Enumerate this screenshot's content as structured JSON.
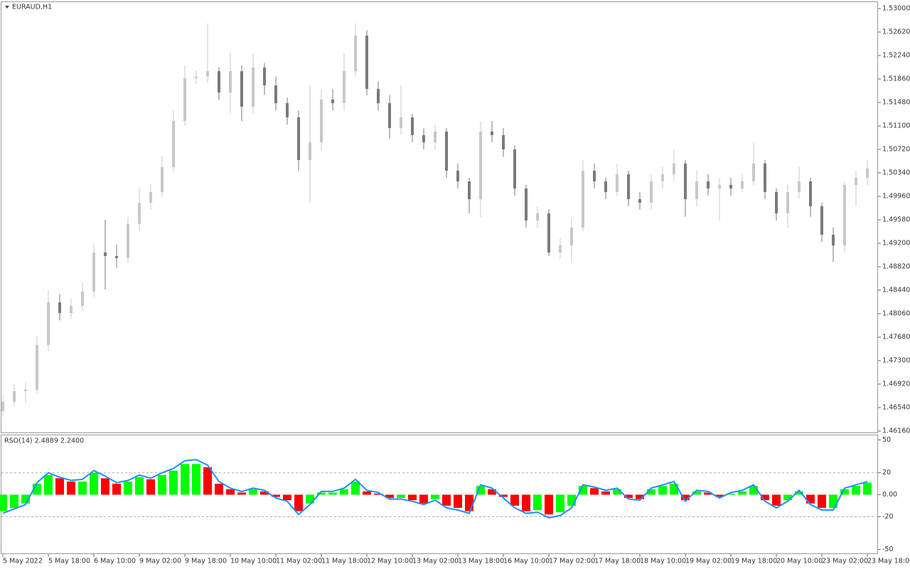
{
  "chart_data": [
    {
      "type": "candlestick",
      "title": "EURAUD,H1",
      "categories": [
        "5 May 2022",
        null,
        null,
        null,
        "5 May 18:00",
        null,
        null,
        null,
        "6 May 10:00",
        null,
        null,
        null,
        "9 May 02:00",
        null,
        null,
        null,
        "9 May 18:00",
        null,
        null,
        null,
        "10 May 10:00",
        null,
        null,
        null,
        "11 May 02:00",
        null,
        null,
        null,
        "11 May 18:00",
        null,
        null,
        null,
        "12 May 10:00",
        null,
        null,
        null,
        "13 May 02:00",
        null,
        null,
        null,
        "13 May 18:00",
        null,
        null,
        null,
        "16 May 10:00",
        null,
        null,
        null,
        "17 May 02:00",
        null,
        null,
        null,
        "17 May 18:00",
        null,
        null,
        null,
        "18 May 10:00",
        null,
        null,
        null,
        "19 May 02:00",
        null,
        null,
        null,
        "19 May 18:00",
        null,
        null,
        null,
        "20 May 10:00",
        null,
        null,
        null,
        "23 May 02:00",
        null,
        null,
        null,
        "23 May 18:00"
      ],
      "open": [
        1.46482,
        1.46632,
        1.46805,
        1.46828,
        1.47553,
        1.48244,
        1.48071,
        1.48187,
        1.48417,
        1.4905,
        1.48993,
        1.4896,
        1.49511,
        1.49856,
        1.50029,
        1.50432,
        1.5118,
        1.51871,
        1.519,
        1.51986,
        1.51641,
        1.51986,
        1.51411,
        1.52044,
        1.51756,
        1.51468,
        1.51238,
        1.50547,
        1.50835,
        1.51526,
        1.51468,
        1.51986,
        1.52562,
        1.51699,
        1.51468,
        1.51065,
        1.51238,
        1.5095,
        1.50835,
        1.51008,
        1.50374,
        1.50202,
        1.49914,
        1.51008,
        1.5095,
        1.5072,
        1.50087,
        1.49568,
        1.49683,
        1.4905,
        1.49165,
        1.49453,
        1.50374,
        1.50202,
        1.50029,
        1.50317,
        1.49914,
        1.49856,
        1.50202,
        1.50317,
        1.5049,
        1.49914,
        1.50202,
        1.50087,
        1.50144,
        1.50087,
        1.50202,
        1.5049,
        1.50029,
        1.49683,
        1.50029,
        1.50202,
        1.49799,
        1.49338,
        1.49165,
        1.50144,
        1.50259
      ],
      "high": [
        1.4675,
        1.4692,
        1.4696,
        1.477,
        1.4844,
        1.4838,
        1.483,
        1.4856,
        1.492,
        1.4958,
        1.4918,
        1.4962,
        1.5009,
        1.5016,
        1.5062,
        1.5135,
        1.5207,
        1.52,
        1.52758,
        1.5205,
        1.52274,
        1.5208,
        1.52274,
        1.5212,
        1.519,
        1.5156,
        1.5135,
        1.51756,
        1.517,
        1.517,
        1.52274,
        1.52758,
        1.5265,
        1.5182,
        1.516,
        1.51756,
        1.513,
        1.51065,
        1.5112,
        1.51065,
        1.5049,
        1.5026,
        1.5118,
        1.5118,
        1.51065,
        1.5078,
        1.50144,
        1.498,
        1.4975,
        1.4928,
        1.496,
        1.5055,
        1.5049,
        1.5026,
        1.5049,
        1.50374,
        1.50029,
        1.50317,
        1.50432,
        1.5072,
        1.50547,
        1.50374,
        1.50317,
        1.5026,
        1.5026,
        1.50317,
        1.50835,
        1.50547,
        1.50087,
        1.50144,
        1.50432,
        1.5026,
        1.4986,
        1.49453,
        1.50202,
        1.50374,
        1.50547
      ],
      "low": [
        1.464,
        1.4655,
        1.4662,
        1.4676,
        1.4745,
        1.4795,
        1.4798,
        1.481,
        1.4833,
        1.4845,
        1.488,
        1.4888,
        1.494,
        1.4975,
        1.4995,
        1.5035,
        1.511,
        1.5178,
        1.518,
        1.5152,
        1.513,
        1.5118,
        1.513,
        1.516,
        1.5135,
        1.5112,
        1.50374,
        1.49856,
        1.507,
        1.5135,
        1.5135,
        1.519,
        1.516,
        1.5135,
        1.50893,
        1.5095,
        1.50835,
        1.5072,
        1.5072,
        1.50259,
        1.50087,
        1.49683,
        1.49626,
        1.50835,
        1.506,
        1.4997,
        1.4945,
        1.4945,
        1.48993,
        1.4895,
        1.489,
        1.494,
        1.50087,
        1.49914,
        1.4997,
        1.49799,
        1.4974,
        1.4974,
        1.50087,
        1.50202,
        1.49626,
        1.49799,
        1.4997,
        1.49568,
        1.4997,
        1.50029,
        1.50144,
        1.49914,
        1.49568,
        1.49453,
        1.49914,
        1.49626,
        1.4922,
        1.489,
        1.4905,
        1.49799,
        1.50144
      ],
      "close": [
        1.46632,
        1.46805,
        1.46828,
        1.47553,
        1.48244,
        1.48071,
        1.48187,
        1.48417,
        1.4905,
        1.48993,
        1.4896,
        1.49511,
        1.49856,
        1.50029,
        1.50432,
        1.5118,
        1.51871,
        1.519,
        1.51986,
        1.51641,
        1.51986,
        1.51411,
        1.52044,
        1.51756,
        1.51468,
        1.51238,
        1.50547,
        1.50835,
        1.51526,
        1.51468,
        1.51986,
        1.52562,
        1.51699,
        1.51468,
        1.51065,
        1.51238,
        1.5095,
        1.50835,
        1.51008,
        1.50374,
        1.50202,
        1.49914,
        1.51008,
        1.5095,
        1.5072,
        1.50087,
        1.49568,
        1.49683,
        1.4905,
        1.49165,
        1.49453,
        1.50374,
        1.50202,
        1.50029,
        1.50317,
        1.49914,
        1.49856,
        1.50202,
        1.50317,
        1.5049,
        1.49914,
        1.50202,
        1.50087,
        1.50144,
        1.50087,
        1.50202,
        1.5049,
        1.50029,
        1.49683,
        1.50029,
        1.50202,
        1.49799,
        1.49338,
        1.49165,
        1.50144,
        1.50259,
        1.50409
      ],
      "up_color": "#c8c8c8",
      "down_color": "#7a7a7a",
      "ylim": [
        1.46137,
        1.53104
      ],
      "yticks": [
        {
          "value": 1.53,
          "label": "1.53000"
        },
        {
          "value": 1.5262,
          "label": "1.52620"
        },
        {
          "value": 1.5224,
          "label": "1.52240"
        },
        {
          "value": 1.5186,
          "label": "1.51860"
        },
        {
          "value": 1.5148,
          "label": "1.51480"
        },
        {
          "value": 1.511,
          "label": "1.51100"
        },
        {
          "value": 1.5072,
          "label": "1.50720"
        },
        {
          "value": 1.5034,
          "label": "1.50340"
        },
        {
          "value": 1.4996,
          "label": "1.49960"
        },
        {
          "value": 1.4958,
          "label": "1.49580"
        },
        {
          "value": 1.492,
          "label": "1.49200"
        },
        {
          "value": 1.4882,
          "label": "1.48820"
        },
        {
          "value": 1.4844,
          "label": "1.48440"
        },
        {
          "value": 1.4806,
          "label": "1.48060"
        },
        {
          "value": 1.4768,
          "label": "1.47680"
        },
        {
          "value": 1.473,
          "label": "1.47300"
        },
        {
          "value": 1.4692,
          "label": "1.46920"
        },
        {
          "value": 1.4654,
          "label": "1.46540"
        },
        {
          "value": 1.4616,
          "label": "1.46160"
        }
      ]
    },
    {
      "type": "histogram-line",
      "title": "RSO(14) 2.4889 2.2400",
      "values": [
        -15,
        -12,
        -8,
        10,
        18,
        15,
        12,
        12,
        20,
        15,
        10,
        12,
        16,
        14,
        18,
        22,
        28,
        28,
        25,
        10,
        5,
        2,
        5,
        3,
        -2,
        -5,
        -15,
        -8,
        2,
        2,
        5,
        12,
        3,
        1,
        -3,
        -3,
        -5,
        -8,
        -4,
        -10,
        -12,
        -15,
        8,
        5,
        -2,
        -10,
        -15,
        -14,
        -18,
        -16,
        -10,
        8,
        6,
        3,
        5,
        -3,
        -4,
        5,
        8,
        10,
        -5,
        3,
        2,
        -2,
        1,
        3,
        8,
        -5,
        -10,
        -5,
        3,
        -8,
        -12,
        -12,
        5,
        8,
        11
      ],
      "line_values": [
        -17,
        -13,
        -9,
        11,
        20,
        16,
        13,
        14,
        22,
        17,
        11,
        13,
        18,
        15,
        20,
        24,
        31,
        32,
        27,
        12,
        6,
        3,
        6,
        4,
        -3,
        -6,
        -18,
        -9,
        3,
        3,
        6,
        14,
        4,
        2,
        -4,
        -4,
        -6,
        -9,
        -5,
        -12,
        -14,
        -17,
        9,
        6,
        -3,
        -12,
        -17,
        -16,
        -21,
        -19,
        -12,
        9,
        7,
        4,
        6,
        -4,
        -5,
        6,
        9,
        12,
        -6,
        4,
        3,
        -3,
        2,
        4,
        9,
        -6,
        -12,
        -6,
        4,
        -9,
        -14,
        -14,
        6,
        9,
        12
      ],
      "up_color": "#00ff00",
      "down_color": "#ff0000",
      "line_color": "#1e90ff",
      "ylim": [
        -53.5,
        54.2
      ],
      "yticks": [
        50,
        20,
        {
          "value": 0,
          "label": "0.00"
        },
        -20,
        -50
      ],
      "levels": [
        20,
        -20
      ]
    }
  ]
}
